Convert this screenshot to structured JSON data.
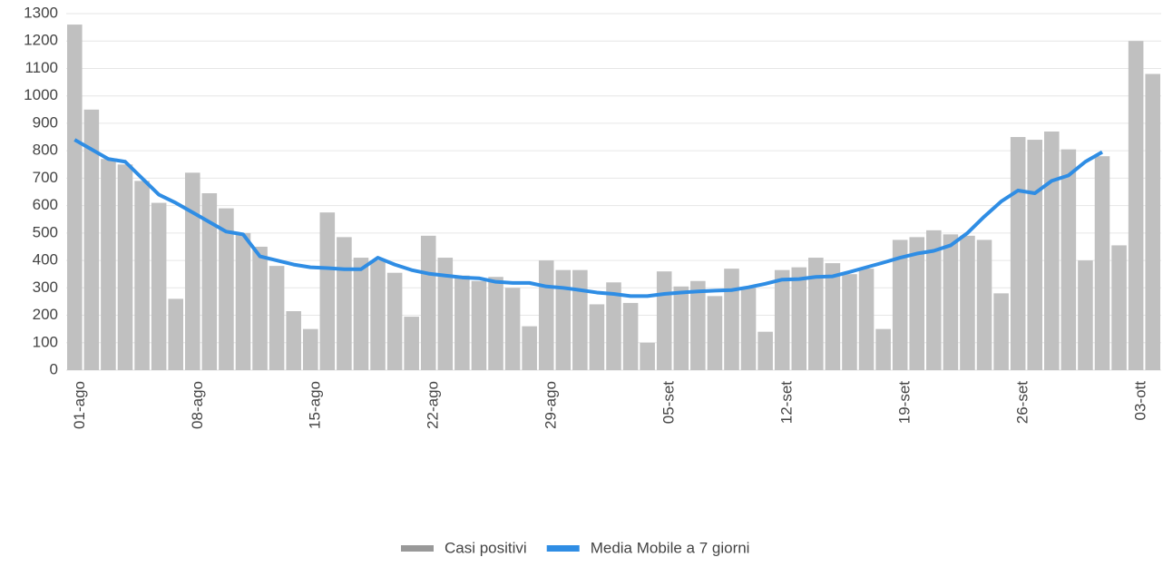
{
  "chart_data": {
    "type": "bar-line",
    "categories": [
      "01-ago",
      null,
      null,
      null,
      null,
      null,
      null,
      "08-ago",
      null,
      null,
      null,
      null,
      null,
      null,
      "15-ago",
      null,
      null,
      null,
      null,
      null,
      null,
      "22-ago",
      null,
      null,
      null,
      null,
      null,
      null,
      "29-ago",
      null,
      null,
      null,
      null,
      null,
      null,
      "05-set",
      null,
      null,
      null,
      null,
      null,
      null,
      "12-set",
      null,
      null,
      null,
      null,
      null,
      null,
      "19-set",
      null,
      null,
      null,
      null,
      null,
      null,
      "26-set",
      null,
      null,
      null,
      null,
      null,
      null,
      "03-ott",
      null
    ],
    "series": [
      {
        "name": "Casi positivi",
        "color": "#c0c0c0",
        "kind": "bar",
        "values": [
          1260,
          950,
          770,
          750,
          690,
          610,
          260,
          720,
          645,
          590,
          500,
          450,
          380,
          215,
          150,
          575,
          485,
          410,
          400,
          355,
          195,
          490,
          410,
          345,
          325,
          340,
          300,
          160,
          400,
          365,
          365,
          240,
          320,
          245,
          100,
          360,
          305,
          325,
          270,
          370,
          300,
          140,
          365,
          375,
          410,
          390,
          350,
          370,
          150,
          475,
          485,
          510,
          495,
          490,
          475,
          280,
          850,
          840,
          870,
          805,
          400,
          780,
          455,
          1200,
          1080
        ]
      },
      {
        "name": "Media Mobile a 7 giorni",
        "color": "#2f8de4",
        "kind": "line",
        "values": [
          840,
          805,
          770,
          760,
          700,
          640,
          610,
          575,
          540,
          505,
          495,
          415,
          400,
          385,
          375,
          372,
          368,
          368,
          410,
          385,
          365,
          352,
          345,
          338,
          335,
          322,
          318,
          318,
          305,
          300,
          292,
          283,
          278,
          270,
          270,
          278,
          283,
          287,
          290,
          292,
          302,
          315,
          330,
          332,
          340,
          342,
          358,
          375,
          392,
          410,
          425,
          435,
          455,
          500,
          560,
          615,
          655,
          645,
          690,
          710,
          760,
          795,
          null,
          null,
          null
        ]
      }
    ],
    "ylim": [
      0,
      1300
    ],
    "yticks": [
      0,
      100,
      200,
      300,
      400,
      500,
      600,
      700,
      800,
      900,
      1000,
      1100,
      1200,
      1300
    ],
    "grid": true,
    "legend": "bottom"
  }
}
